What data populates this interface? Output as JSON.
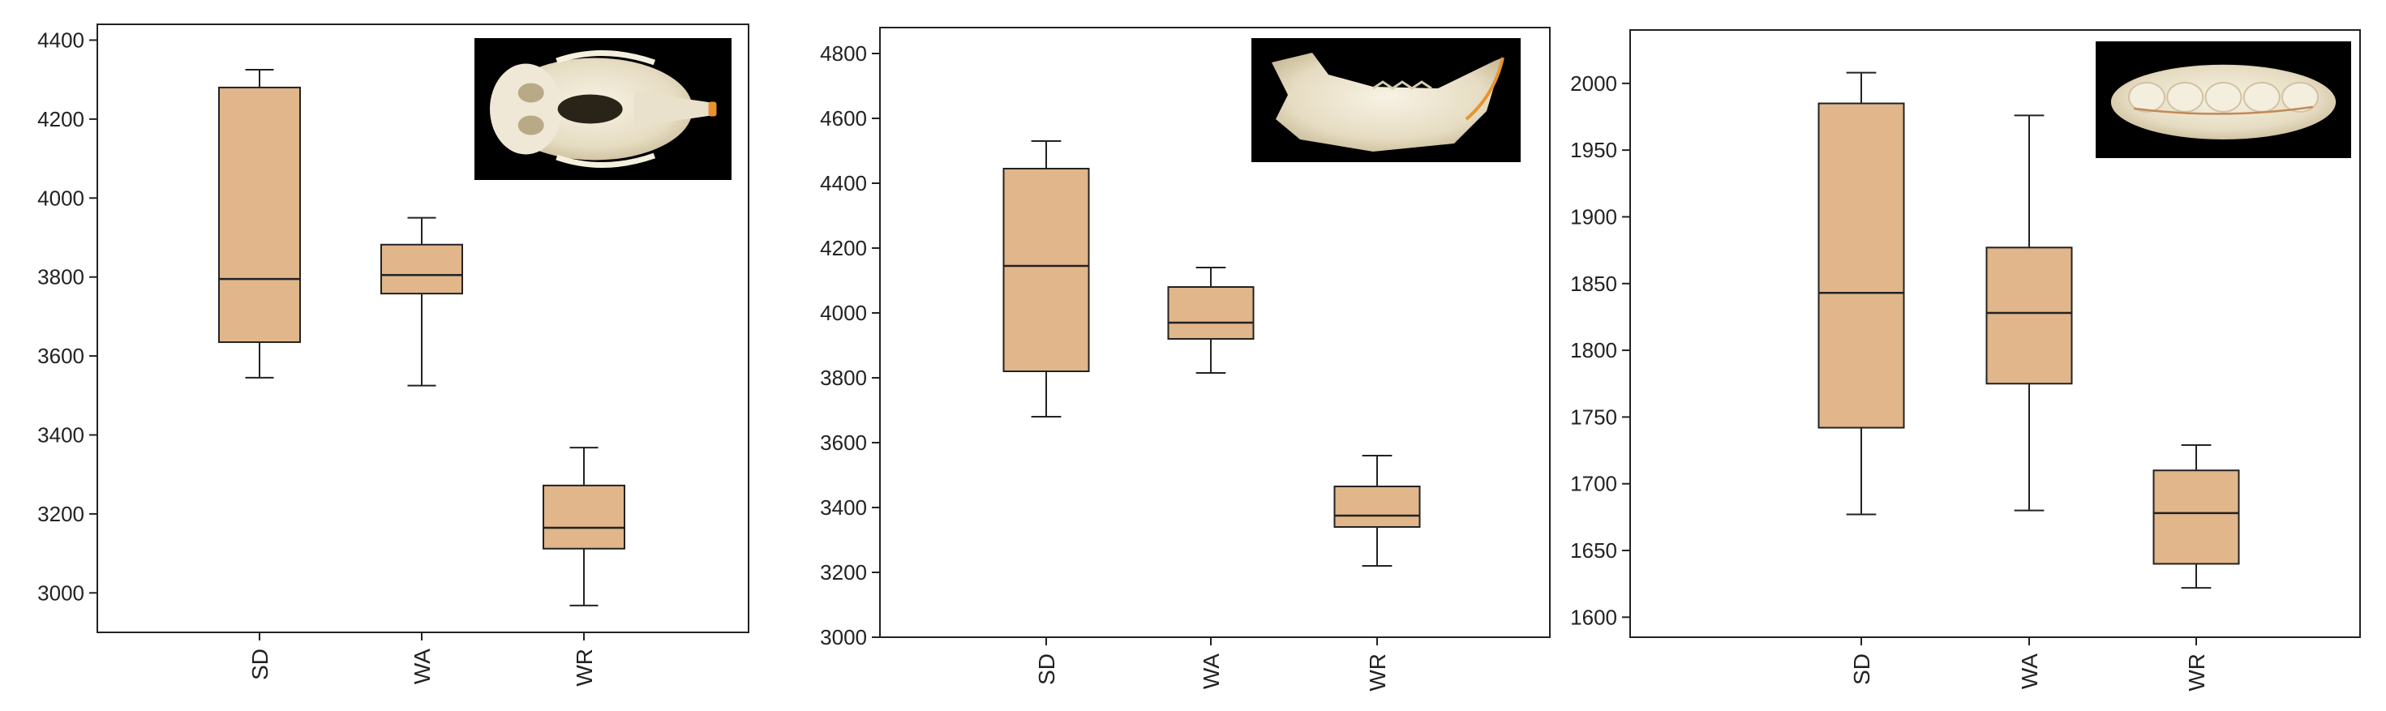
{
  "colors": {
    "box_fill": "#e0b68a",
    "stroke": "#222222",
    "inset_bg": "#000000",
    "bone": "#ece6d4"
  },
  "chart_data": [
    {
      "type": "box",
      "categories": [
        "SD",
        "WA",
        "WR"
      ],
      "ylim": [
        2900,
        4440
      ],
      "yticks": [
        3000,
        3200,
        3400,
        3600,
        3800,
        4000,
        4200,
        4400
      ],
      "grid": false,
      "inset_image": "skull-icon",
      "boxes": [
        {
          "category": "SD",
          "min": 3545,
          "q1": 3635,
          "median": 3795,
          "q3": 4280,
          "max": 4325
        },
        {
          "category": "WA",
          "min": 3525,
          "q1": 3758,
          "median": 3805,
          "q3": 3882,
          "max": 3950
        },
        {
          "category": "WR",
          "min": 2968,
          "q1": 3112,
          "median": 3165,
          "q3": 3272,
          "max": 3368
        }
      ]
    },
    {
      "type": "box",
      "categories": [
        "SD",
        "WA",
        "WR"
      ],
      "ylim": [
        3000,
        4880
      ],
      "yticks": [
        3000,
        3200,
        3400,
        3600,
        3800,
        4000,
        4200,
        4400,
        4600,
        4800
      ],
      "grid": false,
      "inset_image": "jaw-icon",
      "boxes": [
        {
          "category": "SD",
          "min": 3680,
          "q1": 3820,
          "median": 4145,
          "q3": 4445,
          "max": 4530
        },
        {
          "category": "WA",
          "min": 3815,
          "q1": 3920,
          "median": 3970,
          "q3": 4080,
          "max": 4140
        },
        {
          "category": "WR",
          "min": 3220,
          "q1": 3340,
          "median": 3375,
          "q3": 3465,
          "max": 3560
        }
      ]
    },
    {
      "type": "box",
      "categories": [
        "SD",
        "WA",
        "WR"
      ],
      "ylim": [
        1585,
        2040
      ],
      "yticks": [
        1600,
        1650,
        1700,
        1750,
        1800,
        1850,
        1900,
        1950,
        2000
      ],
      "grid": false,
      "inset_image": "molar-icon",
      "boxes": [
        {
          "category": "SD",
          "min": 1677,
          "q1": 1742,
          "median": 1843,
          "q3": 1985,
          "max": 2008
        },
        {
          "category": "WA",
          "min": 1680,
          "q1": 1775,
          "median": 1828,
          "q3": 1877,
          "max": 1976
        },
        {
          "category": "WR",
          "min": 1622,
          "q1": 1640,
          "median": 1678,
          "q3": 1710,
          "max": 1729
        }
      ]
    }
  ]
}
